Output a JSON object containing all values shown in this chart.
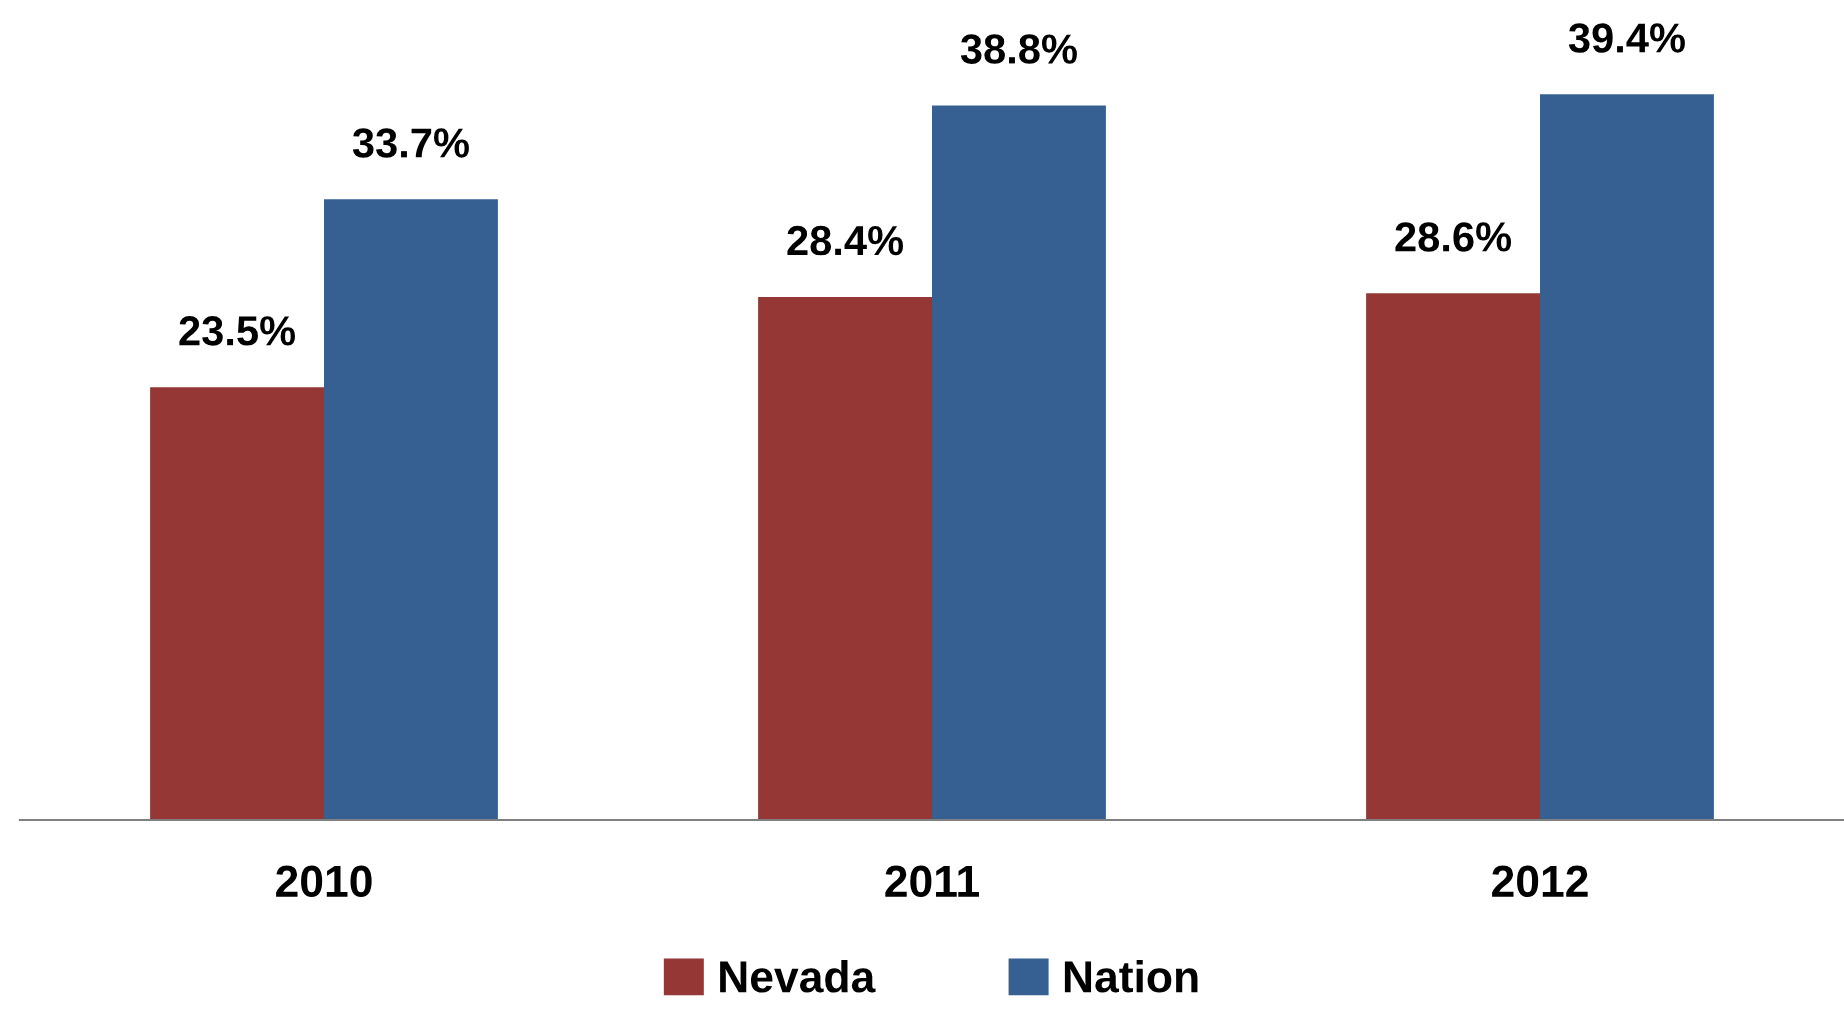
{
  "chart_data": {
    "type": "bar",
    "categories": [
      "2010",
      "2011",
      "2012"
    ],
    "series": [
      {
        "name": "Nevada",
        "color": "#953735",
        "values": [
          23.5,
          28.4,
          28.6
        ],
        "value_labels": [
          "23.5%",
          "28.4%",
          "28.6%"
        ]
      },
      {
        "name": "Nation",
        "color": "#366092",
        "values": [
          33.7,
          38.8,
          39.4
        ],
        "value_labels": [
          "33.7%",
          "38.8%",
          "39.4%"
        ]
      }
    ],
    "legend": "bottom",
    "grid": false
  }
}
